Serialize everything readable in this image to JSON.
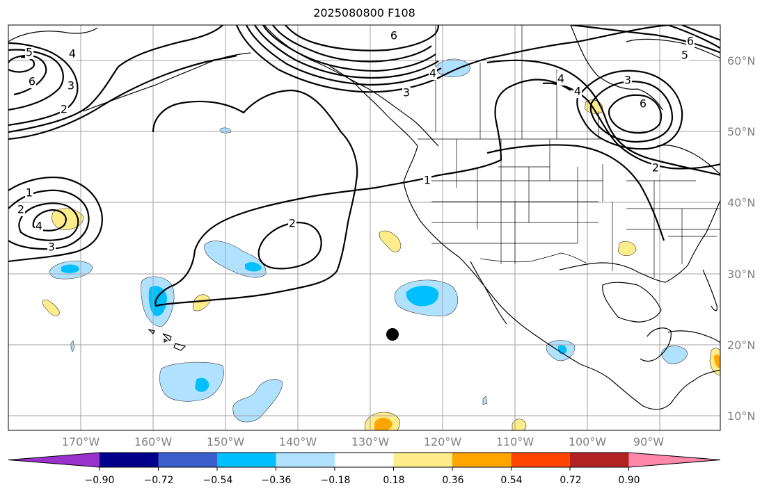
{
  "title": "2025080800 F108",
  "lat_labels": [
    "60°N",
    "50°N",
    "40°N",
    "30°N",
    "20°N",
    "10°N"
  ],
  "lon_labels": [
    "170°W",
    "160°W",
    "150°W",
    "140°W",
    "130°W",
    "120°W",
    "110°W",
    "100°W",
    "90°W"
  ],
  "contour_labels": [
    "5",
    "4",
    "6",
    "3",
    "2",
    "6",
    "3",
    "4",
    "4",
    "4",
    "3",
    "6",
    "2",
    "6",
    "5",
    "1",
    "2",
    "4",
    "3",
    "2",
    "1"
  ],
  "colorbar": {
    "ticks": [
      "−0.90",
      "−0.72",
      "−0.54",
      "−0.36",
      "−0.18",
      "0.18",
      "0.36",
      "0.54",
      "0.72",
      "0.90"
    ],
    "colors": [
      "#9932cc",
      "#00008b",
      "#3a5fcd",
      "#00bfff",
      "#b0e2ff",
      "#ffffff",
      "#ffec8b",
      "#ffa500",
      "#ff4500",
      "#b22222",
      "#ff88aa"
    ]
  },
  "palette": {
    "light_blue": "#b0e2ff",
    "blue": "#00bfff",
    "light_yellow": "#ffec8b",
    "orange": "#ffa500",
    "grid": "#a0a0a0"
  }
}
